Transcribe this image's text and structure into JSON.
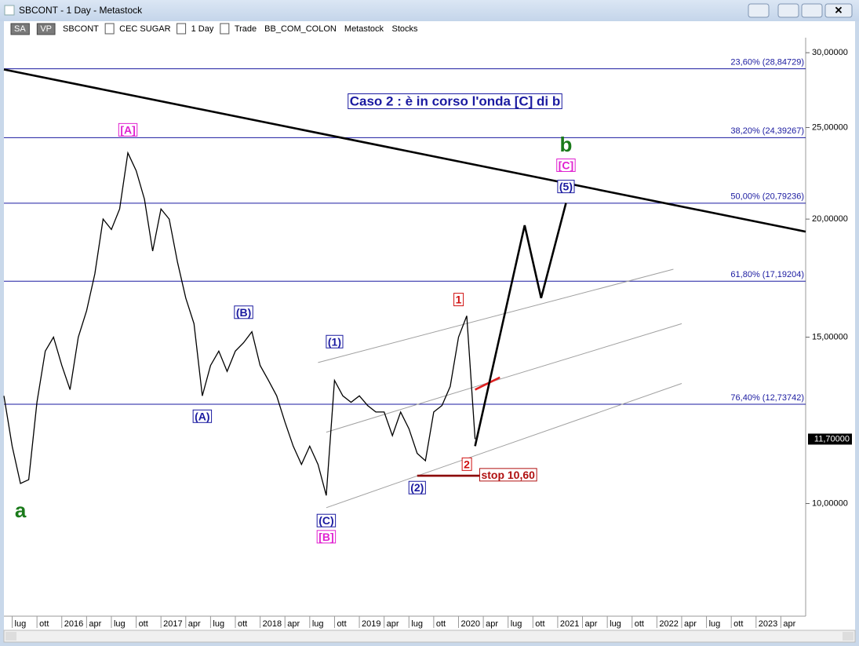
{
  "window": {
    "title": "SBCONT - 1 Day - Metastock",
    "toolbar": [
      "SA",
      "VP",
      "SBCONT",
      "CEC SUGAR",
      "1 Day",
      "Trade",
      "BB_COM_COLON",
      "Metastock",
      "Stocks"
    ]
  },
  "chart_data": {
    "type": "line",
    "title": "Caso 2 : è in corso l'onda [C] di b",
    "color": "#000000",
    "log_scale": true,
    "x": [
      "2015-06",
      "2015-07",
      "2015-08",
      "2015-09",
      "2015-10",
      "2015-11",
      "2015-12",
      "2016-01",
      "2016-02",
      "2016-03",
      "2016-04",
      "2016-05",
      "2016-06",
      "2016-07",
      "2016-08",
      "2016-09",
      "2016-10",
      "2016-11",
      "2016-12",
      "2017-01",
      "2017-02",
      "2017-03",
      "2017-04",
      "2017-05",
      "2017-06",
      "2017-07",
      "2017-08",
      "2017-09",
      "2017-10",
      "2017-11",
      "2017-12",
      "2018-01",
      "2018-02",
      "2018-03",
      "2018-04",
      "2018-05",
      "2018-06",
      "2018-07",
      "2018-08",
      "2018-09",
      "2018-10",
      "2018-11",
      "2018-12",
      "2019-01",
      "2019-02",
      "2019-03",
      "2019-04",
      "2019-05",
      "2019-06",
      "2019-07",
      "2019-08",
      "2019-09",
      "2019-10",
      "2019-11",
      "2019-12",
      "2020-01",
      "2020-02",
      "2020-03"
    ],
    "values": [
      13.0,
      11.5,
      10.5,
      10.6,
      12.8,
      14.5,
      15.0,
      14.0,
      13.2,
      15.0,
      16.0,
      17.5,
      20.0,
      19.5,
      20.5,
      23.5,
      22.5,
      21.0,
      18.5,
      20.5,
      20.0,
      18.0,
      16.5,
      15.5,
      13.0,
      14.0,
      14.5,
      13.8,
      14.5,
      14.8,
      15.2,
      14.0,
      13.5,
      13.0,
      12.2,
      11.5,
      11.0,
      11.5,
      11.0,
      10.2,
      13.5,
      13.0,
      12.8,
      13.0,
      12.7,
      12.5,
      12.5,
      11.8,
      12.5,
      12.0,
      11.3,
      11.1,
      12.5,
      12.7,
      13.3,
      15.0,
      15.8,
      11.7
    ],
    "xlim": [
      "2015-06",
      "2023-07"
    ],
    "xticks": [
      {
        "value": "2015-07",
        "label": "lug"
      },
      {
        "value": "2015-10",
        "label": "ott"
      },
      {
        "value": "2016-01",
        "label": "2016"
      },
      {
        "value": "2016-04",
        "label": "apr"
      },
      {
        "value": "2016-07",
        "label": "lug"
      },
      {
        "value": "2016-10",
        "label": "ott"
      },
      {
        "value": "2017-01",
        "label": "2017"
      },
      {
        "value": "2017-04",
        "label": "apr"
      },
      {
        "value": "2017-07",
        "label": "lug"
      },
      {
        "value": "2017-10",
        "label": "ott"
      },
      {
        "value": "2018-01",
        "label": "2018"
      },
      {
        "value": "2018-04",
        "label": "apr"
      },
      {
        "value": "2018-07",
        "label": "lug"
      },
      {
        "value": "2018-10",
        "label": "ott"
      },
      {
        "value": "2019-01",
        "label": "2019"
      },
      {
        "value": "2019-04",
        "label": "apr"
      },
      {
        "value": "2019-07",
        "label": "lug"
      },
      {
        "value": "2019-10",
        "label": "ott"
      },
      {
        "value": "2020-01",
        "label": "2020"
      },
      {
        "value": "2020-04",
        "label": "apr"
      },
      {
        "value": "2020-07",
        "label": "lug"
      },
      {
        "value": "2020-10",
        "label": "ott"
      },
      {
        "value": "2021-01",
        "label": "2021"
      },
      {
        "value": "2021-04",
        "label": "apr"
      },
      {
        "value": "2021-07",
        "label": "lug"
      },
      {
        "value": "2021-10",
        "label": "ott"
      },
      {
        "value": "2022-01",
        "label": "2022"
      },
      {
        "value": "2022-04",
        "label": "apr"
      },
      {
        "value": "2022-07",
        "label": "lug"
      },
      {
        "value": "2022-10",
        "label": "ott"
      },
      {
        "value": "2023-01",
        "label": "2023"
      },
      {
        "value": "2023-04",
        "label": "apr"
      }
    ],
    "ylim": [
      7.6,
      31
    ],
    "yticks": [
      {
        "value": 10,
        "label": "10,00000"
      },
      {
        "value": 15,
        "label": "15,00000"
      },
      {
        "value": 20,
        "label": "20,00000"
      },
      {
        "value": 25,
        "label": "25,00000"
      },
      {
        "value": 30,
        "label": "30,00000"
      }
    ],
    "last_price": {
      "value": 11.7,
      "label": "11,70000"
    },
    "levels_color": "#1a1aa0",
    "levels": [
      {
        "value": 28.84729,
        "label": "23,60% (28,84729)"
      },
      {
        "value": 24.39267,
        "label": "38,20% (24,39267)"
      },
      {
        "value": 20.79236,
        "label": "50,00% (20,79236)"
      },
      {
        "value": 17.19204,
        "label": "61,80% (17,19204)"
      },
      {
        "value": 12.73742,
        "label": "76,40% (12,73742)"
      }
    ],
    "lines": [
      {
        "x": [
          "2015-06",
          "2023-07"
        ],
        "y": [
          28.8,
          19.4
        ],
        "color": "#000000"
      },
      {
        "x": [
          "2018-08",
          "2022-03"
        ],
        "y": [
          14.1,
          17.7
        ],
        "color": "#a0a0a0"
      },
      {
        "x": [
          "2018-09",
          "2022-04"
        ],
        "y": [
          11.9,
          15.5
        ],
        "color": "#a0a0a0"
      },
      {
        "x": [
          "2018-09",
          "2022-04"
        ],
        "y": [
          9.9,
          13.4
        ],
        "color": "#a0a0a0"
      },
      {
        "x": [
          "2020-03",
          "2020-06"
        ],
        "y": [
          13.2,
          13.6
        ],
        "color": "#e02020"
      },
      {
        "x": [
          "2019-08",
          "2020-05"
        ],
        "y": [
          10.7,
          10.7
        ],
        "color": "#8b0000"
      },
      {
        "x": [
          "2020-03",
          "2020-09",
          "2020-11",
          "2021-02"
        ],
        "y": [
          11.5,
          19.7,
          16.5,
          20.8
        ],
        "color": "#000000"
      }
    ],
    "annotations": [
      {
        "text": "a",
        "x": "2015-08",
        "y": 9.8,
        "color": "#1a7a1a",
        "style": "plain"
      },
      {
        "text": "[A]",
        "x": "2016-09",
        "y": 24.8,
        "color": "#e020d0",
        "style": "box"
      },
      {
        "text": "(A)",
        "x": "2017-06",
        "y": 12.34,
        "color": "#1a1aa0",
        "style": "box"
      },
      {
        "text": "(B)",
        "x": "2017-11",
        "y": 15.9,
        "color": "#1a1aa0",
        "style": "box"
      },
      {
        "text": "(1)",
        "x": "2018-10",
        "y": 14.8,
        "color": "#1a1aa0",
        "style": "box"
      },
      {
        "text": "(C)",
        "x": "2018-09",
        "y": 9.57,
        "color": "#1a1aa0",
        "style": "box"
      },
      {
        "text": "[B]",
        "x": "2018-09",
        "y": 9.2,
        "color": "#e020d0",
        "style": "box"
      },
      {
        "text": "(2)",
        "x": "2019-08",
        "y": 10.37,
        "color": "#1a1aa0",
        "style": "box"
      },
      {
        "text": "1",
        "x": "2020-01",
        "y": 16.4,
        "color": "#d01010",
        "style": "box"
      },
      {
        "text": "2",
        "x": "2020-02",
        "y": 10.98,
        "color": "#d01010",
        "style": "box"
      },
      {
        "text": "stop 10,60",
        "x": "2020-07",
        "y": 10.7,
        "color": "#b01010",
        "style": "box"
      },
      {
        "text": "(5)",
        "x": "2021-02",
        "y": 21.6,
        "color": "#1a1aa0",
        "style": "box"
      },
      {
        "text": "[C]",
        "x": "2021-02",
        "y": 22.75,
        "color": "#e020d0",
        "style": "box"
      },
      {
        "text": "b",
        "x": "2021-02",
        "y": 23.9,
        "color": "#1a7a1a",
        "style": "plain"
      }
    ]
  }
}
